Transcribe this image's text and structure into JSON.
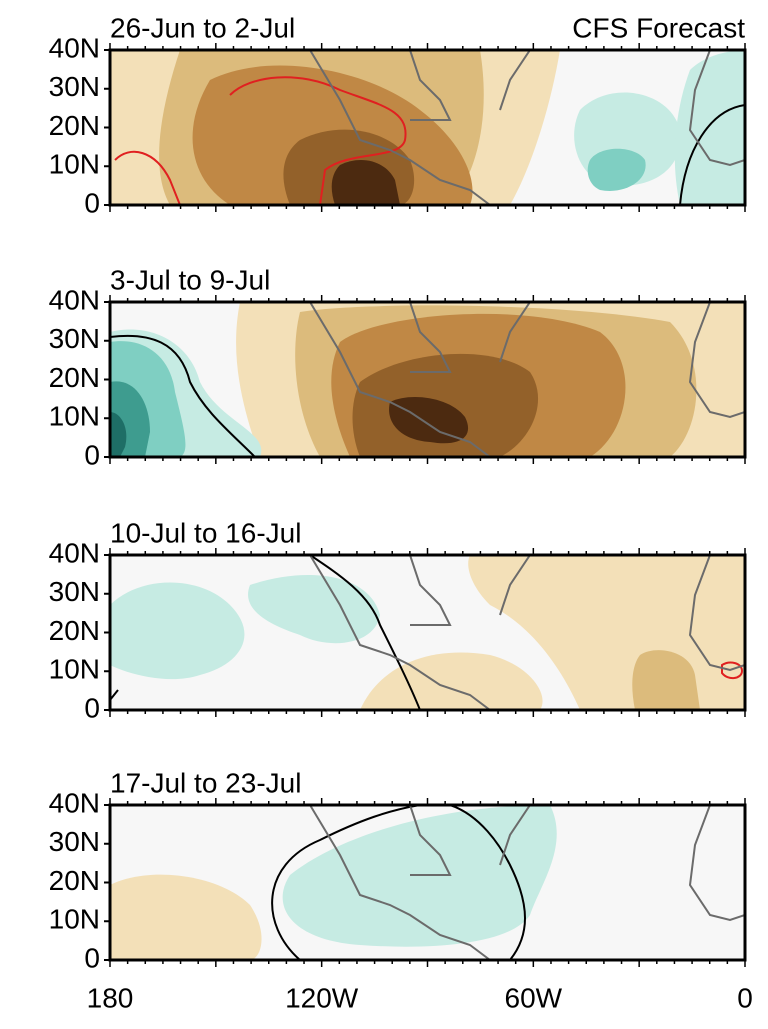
{
  "header": {
    "title": "CFS Forecast"
  },
  "panels": [
    {
      "title": "26-Jun to 2-Jul"
    },
    {
      "title": "3-Jul to 9-Jul"
    },
    {
      "title": "10-Jul to 16-Jul"
    },
    {
      "title": "17-Jul to 23-Jul"
    }
  ],
  "y_axis": {
    "ticks": [
      "40N",
      "30N",
      "20N",
      "10N",
      "0"
    ]
  },
  "x_axis": {
    "ticks": [
      "180",
      "120W",
      "60W",
      "0"
    ]
  }
}
